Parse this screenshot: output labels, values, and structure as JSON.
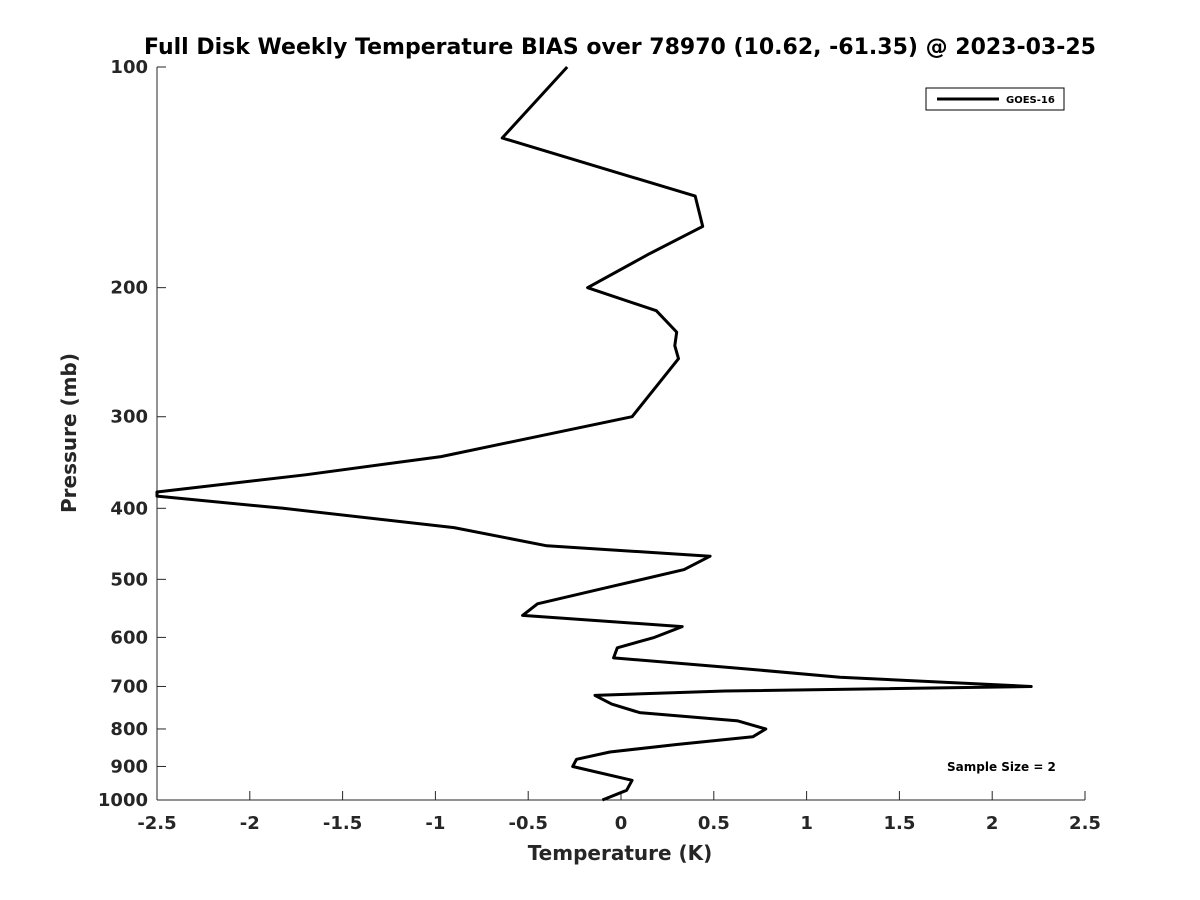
{
  "chart_data": {
    "type": "line",
    "title": "Full Disk Weekly Temperature BIAS over 78970 (10.62, -61.35) @ 2023-03-25",
    "xlabel": "Temperature (K)",
    "ylabel": "Pressure (mb)",
    "xlim": [
      -2.5,
      2.5
    ],
    "ylim": [
      100,
      1000
    ],
    "y_scale": "log",
    "y_reversed": true,
    "x_ticks": [
      "-2.5",
      "-2",
      "-1.5",
      "-1",
      "-0.5",
      "0",
      "0.5",
      "1",
      "1.5",
      "2",
      "2.5"
    ],
    "x_tick_values": [
      -2.5,
      -2,
      -1.5,
      -1,
      -0.5,
      0,
      0.5,
      1,
      1.5,
      2,
      2.5
    ],
    "y_ticks": [
      "100",
      "200",
      "300",
      "400",
      "500",
      "600",
      "700",
      "800",
      "900",
      "1000"
    ],
    "y_tick_values": [
      100,
      200,
      300,
      400,
      500,
      600,
      700,
      800,
      900,
      1000
    ],
    "grid": false,
    "legend": {
      "position": "top-right",
      "entries": [
        "GOES-16"
      ]
    },
    "annotations": [
      "Sample Size = 2"
    ],
    "series": [
      {
        "name": "GOES-16",
        "color": "#000000",
        "points": [
          [
            -0.29,
            100
          ],
          [
            -0.64,
            125
          ],
          [
            0.4,
            150
          ],
          [
            0.44,
            165
          ],
          [
            0.15,
            180
          ],
          [
            -0.18,
            200
          ],
          [
            0.19,
            215
          ],
          [
            0.3,
            230
          ],
          [
            0.29,
            240
          ],
          [
            0.31,
            250
          ],
          [
            0.06,
            300
          ],
          [
            -0.97,
            340
          ],
          [
            -1.7,
            360
          ],
          [
            -2.5,
            380
          ],
          [
            -2.5,
            385
          ],
          [
            -1.82,
            400
          ],
          [
            -0.9,
            425
          ],
          [
            -0.4,
            450
          ],
          [
            0.48,
            465
          ],
          [
            0.34,
            485
          ],
          [
            -0.03,
            510
          ],
          [
            -0.45,
            540
          ],
          [
            -0.53,
            560
          ],
          [
            0.33,
            580
          ],
          [
            0.18,
            600
          ],
          [
            -0.02,
            620
          ],
          [
            -0.04,
            640
          ],
          [
            0.6,
            660
          ],
          [
            1.18,
            680
          ],
          [
            2.21,
            700
          ],
          [
            0.56,
            710
          ],
          [
            -0.14,
            720
          ],
          [
            -0.05,
            740
          ],
          [
            0.1,
            760
          ],
          [
            0.63,
            780
          ],
          [
            0.78,
            800
          ],
          [
            0.71,
            820
          ],
          [
            0.3,
            840
          ],
          [
            -0.06,
            860
          ],
          [
            -0.24,
            880
          ],
          [
            -0.26,
            900
          ],
          [
            0.06,
            940
          ],
          [
            0.03,
            970
          ],
          [
            -0.1,
            1000
          ]
        ]
      }
    ]
  }
}
